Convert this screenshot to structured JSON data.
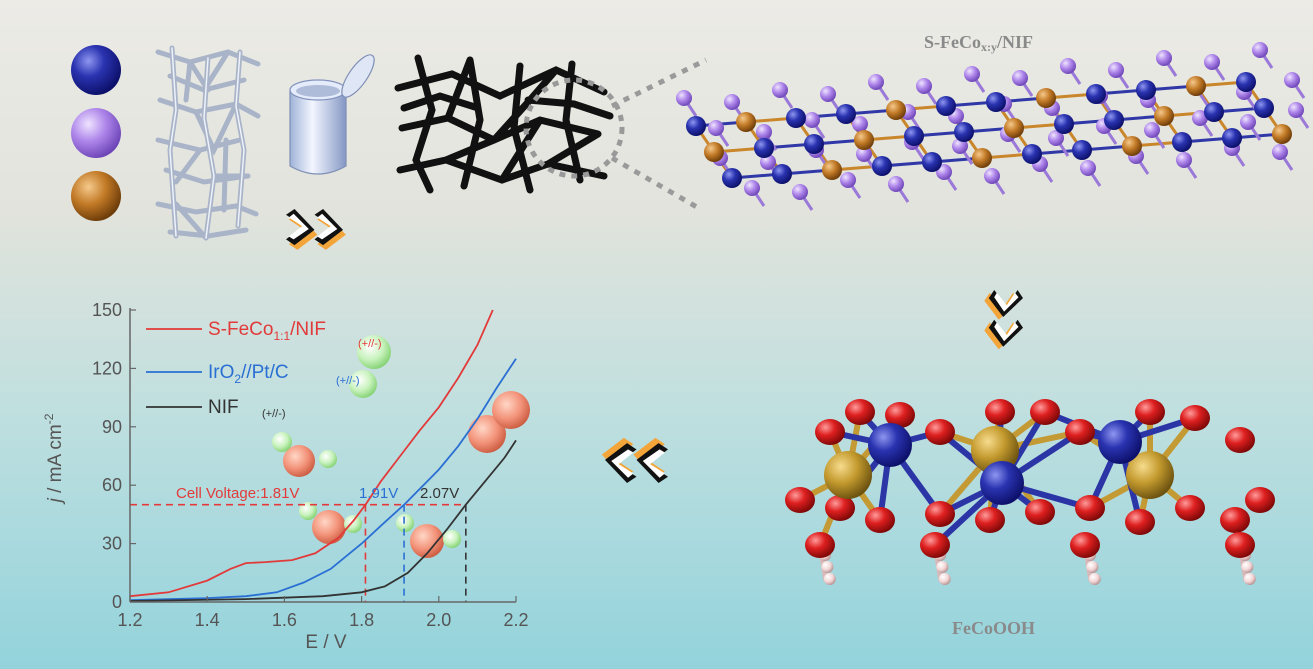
{
  "titles": {
    "catalyst_prefix": "S-FeCo",
    "catalyst_sub": "x:y",
    "catalyst_suffix": "/NIF",
    "product": "FeCoOOH"
  },
  "colors": {
    "atom_blue": "#232a9c",
    "atom_purple": "#a47ee0",
    "atom_orange": "#b8701e",
    "oxygen_red": "#d81c1c",
    "hydrogen_pink": "#f3d7d7",
    "series_red": "#e23a3a",
    "series_blue": "#2a6fd3",
    "series_black": "#333333"
  },
  "icons": [
    "blue-sphere-icon",
    "purple-sphere-icon",
    "orange-sphere-icon",
    "nickel-foam-icon",
    "reactor-vessel-icon",
    "double-chevron-icon"
  ],
  "chart_data": {
    "type": "line",
    "xlabel": "E / V",
    "ylabel_italic": "j",
    "ylabel_rest": " / mA cm",
    "ylabel_sup": "-2",
    "xlim": [
      1.2,
      2.2
    ],
    "ylim": [
      0,
      150
    ],
    "xticks": [
      "1.2",
      "1.4",
      "1.6",
      "1.8",
      "2.0",
      "2.2"
    ],
    "yticks": [
      "0",
      "30",
      "60",
      "90",
      "120",
      "150"
    ],
    "legend_placement": "top-left",
    "legend": [
      {
        "main": "S-FeCo",
        "sub": "1:1",
        "after": "/NIF",
        "note": "(+//-)",
        "color": "#e23a3a"
      },
      {
        "main": "IrO",
        "sub": "2",
        "after": "//Pt/C",
        "note": "(+//-)",
        "color": "#2a6fd3"
      },
      {
        "main": "NIF",
        "sub": "",
        "after": "",
        "note": "(+//-)",
        "color": "#333333"
      }
    ],
    "series": [
      {
        "name": "S-FeCo1:1/NIF",
        "color": "#e23a3a",
        "points": [
          [
            1.2,
            3
          ],
          [
            1.3,
            5
          ],
          [
            1.4,
            11
          ],
          [
            1.46,
            17
          ],
          [
            1.5,
            20
          ],
          [
            1.55,
            20.5
          ],
          [
            1.62,
            21.5
          ],
          [
            1.68,
            25
          ],
          [
            1.74,
            33
          ],
          [
            1.78,
            42
          ],
          [
            1.81,
            50
          ],
          [
            1.85,
            62
          ],
          [
            1.9,
            75
          ],
          [
            1.95,
            88
          ],
          [
            2.0,
            100
          ],
          [
            2.05,
            115
          ],
          [
            2.1,
            132
          ],
          [
            2.14,
            150
          ]
        ]
      },
      {
        "name": "IrO2//Pt/C",
        "color": "#2a6fd3",
        "points": [
          [
            1.2,
            1
          ],
          [
            1.4,
            2
          ],
          [
            1.5,
            3
          ],
          [
            1.58,
            5
          ],
          [
            1.65,
            10
          ],
          [
            1.72,
            17
          ],
          [
            1.8,
            30
          ],
          [
            1.86,
            41
          ],
          [
            1.91,
            50
          ],
          [
            1.96,
            60
          ],
          [
            2.0,
            68
          ],
          [
            2.05,
            80
          ],
          [
            2.1,
            94
          ],
          [
            2.15,
            110
          ],
          [
            2.2,
            125
          ]
        ]
      },
      {
        "name": "NIF",
        "color": "#333333",
        "points": [
          [
            1.2,
            0.5
          ],
          [
            1.5,
            1.5
          ],
          [
            1.7,
            3
          ],
          [
            1.8,
            5
          ],
          [
            1.86,
            8
          ],
          [
            1.92,
            15
          ],
          [
            1.97,
            25
          ],
          [
            2.02,
            37
          ],
          [
            2.07,
            50
          ],
          [
            2.12,
            62
          ],
          [
            2.17,
            74
          ],
          [
            2.2,
            83
          ]
        ]
      }
    ],
    "reference_y": 50,
    "reference_lines": [
      {
        "x": 1.81,
        "color": "#e23a3a"
      },
      {
        "x": 1.91,
        "color": "#2a6fd3"
      },
      {
        "x": 2.07,
        "color": "#333333"
      }
    ],
    "annotations": [
      {
        "text": "Cell Voltage:1.81V",
        "color": "#e23a3a"
      },
      {
        "text": "1.91V",
        "color": "#2a6fd3"
      },
      {
        "text": "2.07V",
        "color": "#333333"
      }
    ]
  }
}
